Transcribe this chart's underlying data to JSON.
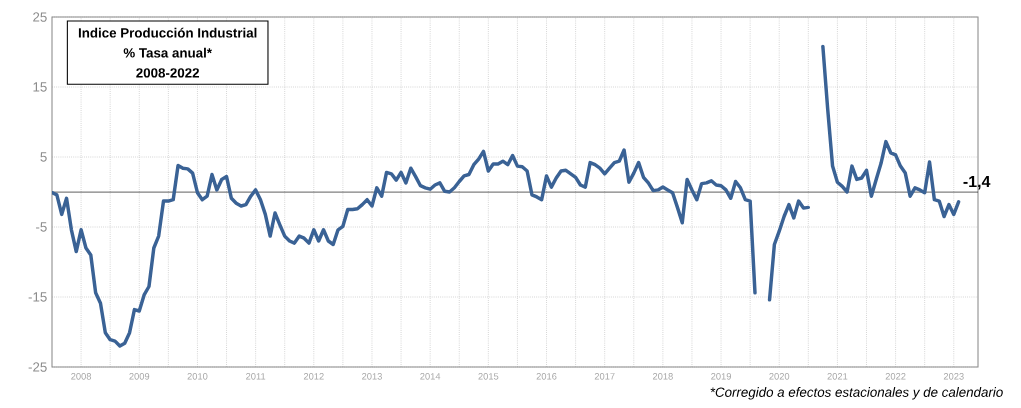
{
  "chart_data": {
    "type": "line",
    "title": "Indice Producción Industrial",
    "subtitle": "% Tasa anual*",
    "annotations": [
      "2008-2022",
      "*Corregido a efectos estacionales y de calendario",
      {
        "text": "-1,4",
        "x": "2023-08",
        "y": -1.4
      }
    ],
    "x": [
      "2008-01",
      "2008-02",
      "2008-03",
      "2008-04",
      "2008-05",
      "2008-06",
      "2008-07",
      "2008-08",
      "2008-09",
      "2008-10",
      "2008-11",
      "2008-12",
      "2009-01",
      "2009-02",
      "2009-03",
      "2009-04",
      "2009-05",
      "2009-06",
      "2009-07",
      "2009-08",
      "2009-09",
      "2009-10",
      "2009-11",
      "2009-12",
      "2010-01",
      "2010-02",
      "2010-03",
      "2010-04",
      "2010-05",
      "2010-06",
      "2010-07",
      "2010-08",
      "2010-09",
      "2010-10",
      "2010-11",
      "2010-12",
      "2011-01",
      "2011-02",
      "2011-03",
      "2011-04",
      "2011-05",
      "2011-06",
      "2011-07",
      "2011-08",
      "2011-09",
      "2011-10",
      "2011-11",
      "2011-12",
      "2012-01",
      "2012-02",
      "2012-03",
      "2012-04",
      "2012-05",
      "2012-06",
      "2012-07",
      "2012-08",
      "2012-09",
      "2012-10",
      "2012-11",
      "2012-12",
      "2013-01",
      "2013-02",
      "2013-03",
      "2013-04",
      "2013-05",
      "2013-06",
      "2013-07",
      "2013-08",
      "2013-09",
      "2013-10",
      "2013-11",
      "2013-12",
      "2014-01",
      "2014-02",
      "2014-03",
      "2014-04",
      "2014-05",
      "2014-06",
      "2014-07",
      "2014-08",
      "2014-09",
      "2014-10",
      "2014-11",
      "2014-12",
      "2015-01",
      "2015-02",
      "2015-03",
      "2015-04",
      "2015-05",
      "2015-06",
      "2015-07",
      "2015-08",
      "2015-09",
      "2015-10",
      "2015-11",
      "2015-12",
      "2016-01",
      "2016-02",
      "2016-03",
      "2016-04",
      "2016-05",
      "2016-06",
      "2016-07",
      "2016-08",
      "2016-09",
      "2016-10",
      "2016-11",
      "2016-12",
      "2017-01",
      "2017-02",
      "2017-03",
      "2017-04",
      "2017-05",
      "2017-06",
      "2017-07",
      "2017-08",
      "2017-09",
      "2017-10",
      "2017-11",
      "2017-12",
      "2018-01",
      "2018-02",
      "2018-03",
      "2018-04",
      "2018-05",
      "2018-06",
      "2018-07",
      "2018-08",
      "2018-09",
      "2018-10",
      "2018-11",
      "2018-12",
      "2019-01",
      "2019-02",
      "2019-03",
      "2019-04",
      "2019-05",
      "2019-06",
      "2019-07",
      "2019-08",
      "2019-09",
      "2019-10",
      "2019-11",
      "2019-12",
      "2020-01",
      "2020-02",
      "2020-03",
      "2020-04",
      "2020-05",
      "2020-06",
      "2020-07",
      "2020-08",
      "2020-09",
      "2020-10",
      "2020-11",
      "2020-12",
      "2021-01",
      "2021-02",
      "2021-03",
      "2021-04",
      "2021-05",
      "2021-06",
      "2021-07",
      "2021-08",
      "2021-09",
      "2021-10",
      "2021-11",
      "2021-12",
      "2022-01",
      "2022-02",
      "2022-03",
      "2022-04",
      "2022-05",
      "2022-06",
      "2022-07",
      "2022-08",
      "2022-09",
      "2022-10",
      "2022-11",
      "2022-12",
      "2023-01",
      "2023-02",
      "2023-03",
      "2023-04",
      "2023-05",
      "2023-06",
      "2023-07",
      "2023-08"
    ],
    "series": [
      {
        "color": "#3a6295",
        "values": [
          -0.1,
          -0.4,
          -3.2,
          -0.9,
          -5.4,
          -8.5,
          -5.4,
          -8.0,
          -9.0,
          -14.4,
          -15.9,
          -20.1,
          -21.1,
          -21.3,
          -22.0,
          -21.6,
          -20.1,
          -16.8,
          -17.0,
          -14.7,
          -13.5,
          -8.0,
          -6.3,
          -1.3,
          -1.3,
          -1.1,
          3.8,
          3.4,
          3.3,
          2.7,
          -0.1,
          -1.1,
          -0.6,
          2.5,
          0.3,
          1.8,
          2.2,
          -0.9,
          -1.6,
          -2.0,
          -1.8,
          -0.6,
          0.3,
          -1.1,
          -3.2,
          -6.3,
          -3.0,
          -4.7,
          -6.3,
          -7.0,
          -7.3,
          -6.3,
          -6.6,
          -7.3,
          -5.4,
          -7.0,
          -5.4,
          -7.0,
          -7.5,
          -5.4,
          -4.9,
          -2.5,
          -2.5,
          -2.4,
          -1.8,
          -1.1,
          -2.0,
          0.6,
          -0.6,
          2.8,
          2.6,
          1.7,
          2.8,
          1.3,
          3.4,
          2.2,
          0.9,
          0.6,
          0.4,
          1.0,
          1.3,
          0.1,
          0.0,
          0.6,
          1.5,
          2.3,
          2.5,
          3.9,
          4.7,
          5.8,
          3.0,
          4.0,
          4.0,
          4.4,
          3.9,
          5.2,
          3.7,
          3.6,
          3.0,
          -0.4,
          -0.7,
          -1.1,
          2.3,
          0.7,
          2.0,
          3.0,
          3.1,
          2.6,
          2.1,
          1.0,
          0.7,
          4.2,
          3.9,
          3.4,
          2.6,
          3.4,
          4.2,
          4.4,
          6.0,
          1.4,
          2.7,
          4.2,
          2.1,
          1.3,
          0.2,
          0.3,
          0.7,
          0.3,
          -0.1,
          -2.2,
          -4.4,
          1.8,
          0.3,
          -1.1,
          1.2,
          1.3,
          1.6,
          1.0,
          0.9,
          0.3,
          -0.9,
          1.5,
          0.6,
          -1.1,
          -1.3,
          -14.4,
          null,
          null,
          -15.4,
          -7.5,
          -5.6,
          -3.5,
          -1.8,
          -3.7,
          -1.3,
          -2.3,
          -2.2,
          null,
          null,
          20.8,
          11.8,
          3.7,
          1.4,
          0.8,
          0.0,
          3.7,
          1.8,
          2.0,
          3.1,
          -0.6,
          1.8,
          4.1,
          7.2,
          5.6,
          5.3,
          3.7,
          2.7,
          -0.6,
          0.6,
          0.3,
          -0.1,
          4.3,
          -1.1,
          -1.3,
          -3.5,
          -1.8,
          -3.2,
          -1.4
        ]
      }
    ],
    "xlim": [
      "2008-01",
      "2023-12"
    ],
    "ylim": [
      -25,
      25
    ],
    "xticks": [
      {
        "value": "2008-07",
        "label": "2008"
      },
      {
        "value": "2009-07",
        "label": "2009"
      },
      {
        "value": "2010-07",
        "label": "2010"
      },
      {
        "value": "2011-07",
        "label": "2011"
      },
      {
        "value": "2012-07",
        "label": "2012"
      },
      {
        "value": "2013-07",
        "label": "2013"
      },
      {
        "value": "2014-07",
        "label": "2014"
      },
      {
        "value": "2015-07",
        "label": "2015"
      },
      {
        "value": "2016-07",
        "label": "2016"
      },
      {
        "value": "2017-07",
        "label": "2017"
      },
      {
        "value": "2018-07",
        "label": "2018"
      },
      {
        "value": "2019-07",
        "label": "2019"
      },
      {
        "value": "2020-07",
        "label": "2020"
      },
      {
        "value": "2021-07",
        "label": "2021"
      },
      {
        "value": "2022-07",
        "label": "2022"
      },
      {
        "value": "2023-07",
        "label": "2023"
      }
    ],
    "yticks": [
      -25,
      -15,
      -5,
      5,
      15,
      25
    ],
    "ref_lines": [
      {
        "axis": "y",
        "value": 0,
        "color": "#000000"
      }
    ],
    "grid": true
  }
}
